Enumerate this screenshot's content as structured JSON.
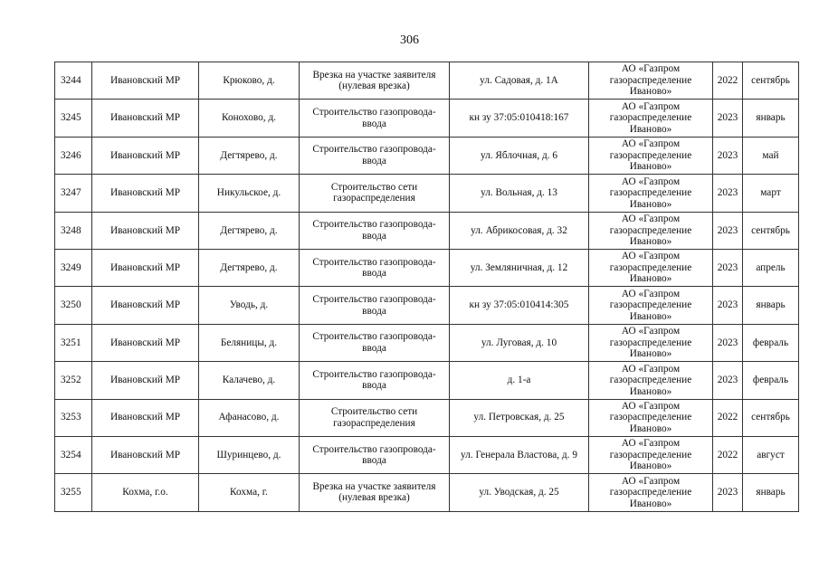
{
  "page_number": "306",
  "rows": [
    [
      "3244",
      "Ивановский МР",
      "Крюково, д.",
      "Врезка на участке заявителя (нулевая врезка)",
      "ул. Садовая, д. 1А",
      "АО «Газпром газораспределение Иваново»",
      "2022",
      "сентябрь"
    ],
    [
      "3245",
      "Ивановский МР",
      "Конохово, д.",
      "Строительство газопровода-ввода",
      "кн зу 37:05:010418:167",
      "АО «Газпром газораспределение Иваново»",
      "2023",
      "январь"
    ],
    [
      "3246",
      "Ивановский МР",
      "Дегтярево, д.",
      "Строительство газопровода-ввода",
      "ул. Яблочная, д. 6",
      "АО «Газпром газораспределение Иваново»",
      "2023",
      "май"
    ],
    [
      "3247",
      "Ивановский МР",
      "Никульское, д.",
      "Строительство сети газораспределения",
      "ул. Вольная, д. 13",
      "АО «Газпром газораспределение Иваново»",
      "2023",
      "март"
    ],
    [
      "3248",
      "Ивановский МР",
      "Дегтярево, д.",
      "Строительство газопровода-ввода",
      "ул. Абрикосовая, д. 32",
      "АО «Газпром газораспределение Иваново»",
      "2023",
      "сентябрь"
    ],
    [
      "3249",
      "Ивановский МР",
      "Дегтярево, д.",
      "Строительство газопровода-ввода",
      "ул. Земляничная, д. 12",
      "АО «Газпром газораспределение Иваново»",
      "2023",
      "апрель"
    ],
    [
      "3250",
      "Ивановский МР",
      "Уводь, д.",
      "Строительство газопровода-ввода",
      "кн зу 37:05:010414:305",
      "АО «Газпром газораспределение Иваново»",
      "2023",
      "январь"
    ],
    [
      "3251",
      "Ивановский МР",
      "Беляницы, д.",
      "Строительство газопровода-ввода",
      "ул. Луговая, д. 10",
      "АО «Газпром газораспределение Иваново»",
      "2023",
      "февраль"
    ],
    [
      "3252",
      "Ивановский МР",
      "Калачево, д.",
      "Строительство газопровода-ввода",
      "д. 1-а",
      "АО «Газпром газораспределение Иваново»",
      "2023",
      "февраль"
    ],
    [
      "3253",
      "Ивановский МР",
      "Афанасово, д.",
      "Строительство сети газораспределения",
      "ул. Петровская, д. 25",
      "АО «Газпром газораспределение Иваново»",
      "2022",
      "сентябрь"
    ],
    [
      "3254",
      "Ивановский МР",
      "Шуринцево, д.",
      "Строительство газопровода-ввода",
      "ул. Генерала Властова, д. 9",
      "АО «Газпром газораспределение Иваново»",
      "2022",
      "август"
    ],
    [
      "3255",
      "Кохма, г.о.",
      "Кохма, г.",
      "Врезка на участке заявителя (нулевая врезка)",
      "ул. Уводская, д. 25",
      "АО «Газпром газораспределение Иваново»",
      "2023",
      "январь"
    ]
  ]
}
